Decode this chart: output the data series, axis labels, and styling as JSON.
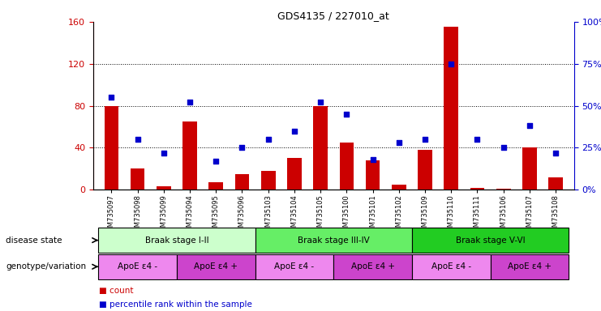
{
  "title": "GDS4135 / 227010_at",
  "samples": [
    "GSM735097",
    "GSM735098",
    "GSM735099",
    "GSM735094",
    "GSM735095",
    "GSM735096",
    "GSM735103",
    "GSM735104",
    "GSM735105",
    "GSM735100",
    "GSM735101",
    "GSM735102",
    "GSM735109",
    "GSM735110",
    "GSM735111",
    "GSM735106",
    "GSM735107",
    "GSM735108"
  ],
  "counts": [
    80,
    20,
    3,
    65,
    7,
    15,
    18,
    30,
    80,
    45,
    28,
    5,
    38,
    155,
    2,
    1,
    40,
    12
  ],
  "percentiles": [
    55,
    30,
    22,
    52,
    17,
    25,
    30,
    35,
    52,
    45,
    18,
    28,
    30,
    75,
    30,
    25,
    38,
    22
  ],
  "ylim_left": [
    0,
    160
  ],
  "ylim_right": [
    0,
    100
  ],
  "yticks_left": [
    0,
    40,
    80,
    120,
    160
  ],
  "yticks_right": [
    0,
    25,
    50,
    75,
    100
  ],
  "bar_color": "#cc0000",
  "dot_color": "#0000cc",
  "disease_state_groups": [
    {
      "label": "Braak stage I-II",
      "start": 0,
      "end": 6,
      "color": "#ccffcc"
    },
    {
      "label": "Braak stage III-IV",
      "start": 6,
      "end": 12,
      "color": "#66ee66"
    },
    {
      "label": "Braak stage V-VI",
      "start": 12,
      "end": 18,
      "color": "#22cc22"
    }
  ],
  "genotype_groups": [
    {
      "label": "ApoE ε4 -",
      "start": 0,
      "end": 3,
      "color": "#ee88ee"
    },
    {
      "label": "ApoE ε4 +",
      "start": 3,
      "end": 6,
      "color": "#cc44cc"
    },
    {
      "label": "ApoE ε4 -",
      "start": 6,
      "end": 9,
      "color": "#ee88ee"
    },
    {
      "label": "ApoE ε4 +",
      "start": 9,
      "end": 12,
      "color": "#cc44cc"
    },
    {
      "label": "ApoE ε4 -",
      "start": 12,
      "end": 15,
      "color": "#ee88ee"
    },
    {
      "label": "ApoE ε4 +",
      "start": 15,
      "end": 18,
      "color": "#cc44cc"
    }
  ],
  "left_label_color": "#cc0000",
  "right_label_color": "#0000cc",
  "bar_width": 0.55,
  "dot_size": 16
}
